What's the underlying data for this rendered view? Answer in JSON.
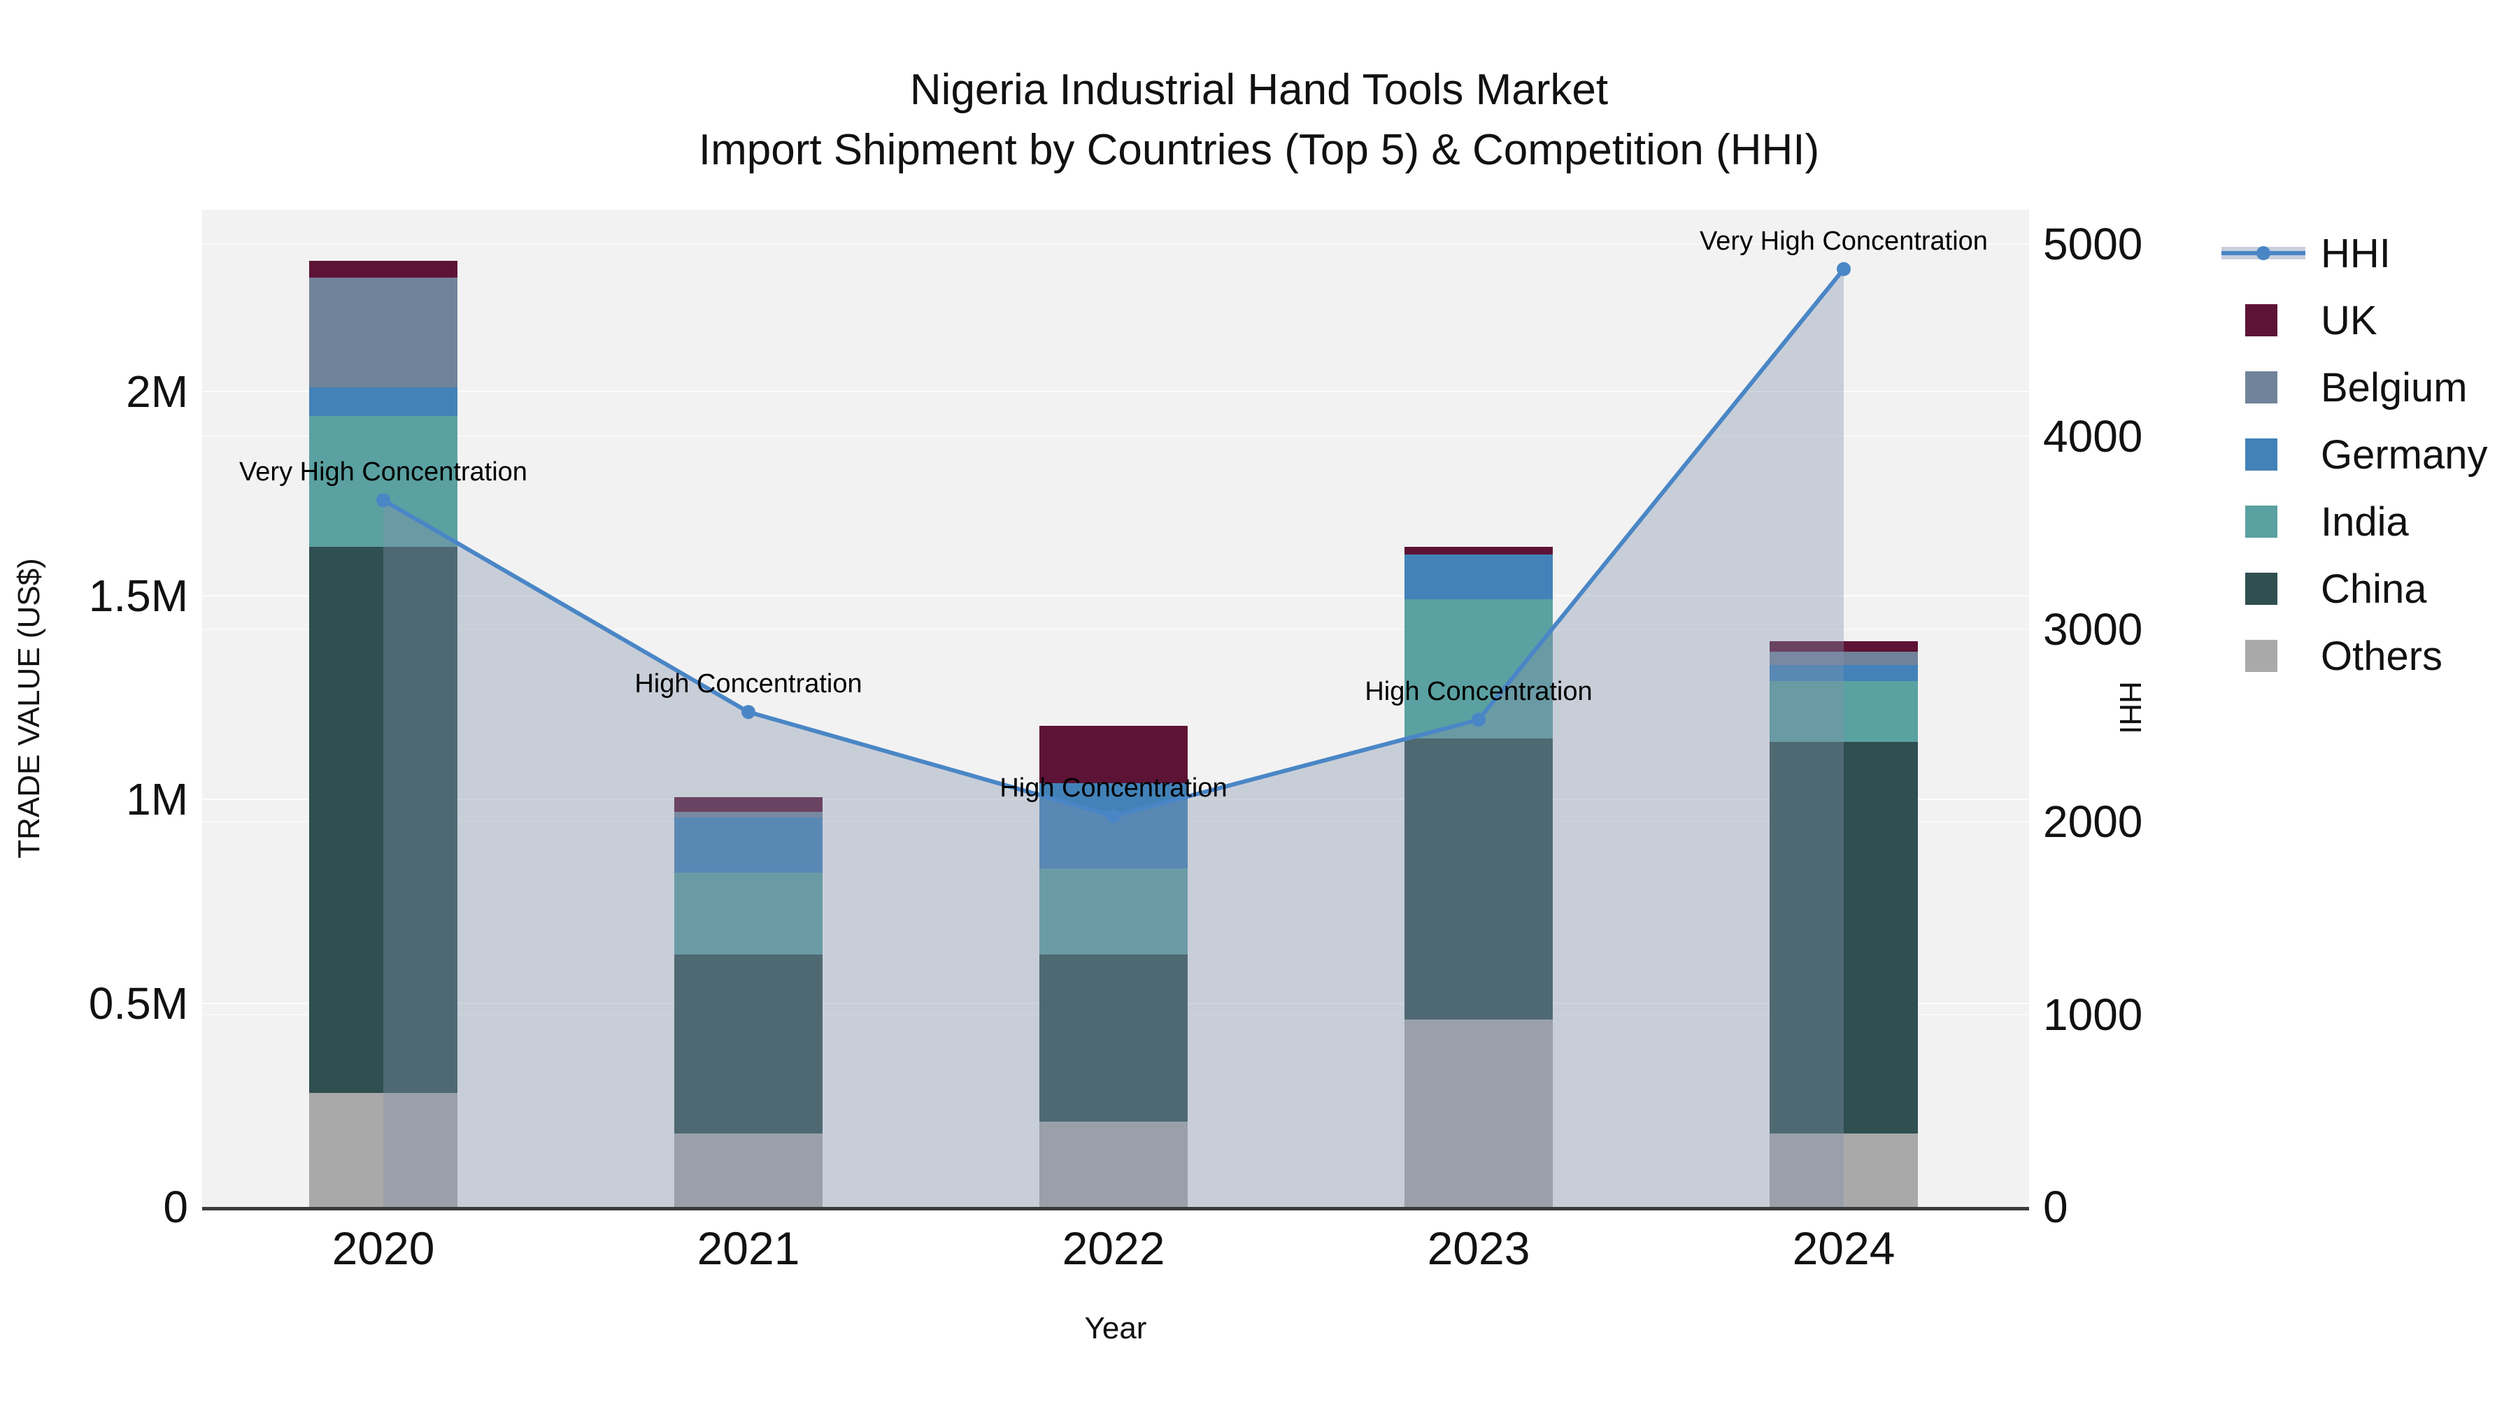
{
  "title": {
    "line1": "Nigeria Industrial Hand Tools Market",
    "line2": "Import Shipment by Countries (Top 5) & Competition (HHI)"
  },
  "axis_left": {
    "label": "TRADE VALUE (US$)",
    "ticks": [
      {
        "label": "0",
        "value": 0
      },
      {
        "label": "0.5M",
        "value": 0.5
      },
      {
        "label": "1M",
        "value": 1
      },
      {
        "label": "1.5M",
        "value": 1.5
      },
      {
        "label": "2M",
        "value": 2
      }
    ]
  },
  "axis_right": {
    "label": "HHI",
    "ticks": [
      {
        "label": "0",
        "value": 0
      },
      {
        "label": "1000",
        "value": 1000
      },
      {
        "label": "2000",
        "value": 2000
      },
      {
        "label": "3000",
        "value": 3000
      },
      {
        "label": "4000",
        "value": 4000
      },
      {
        "label": "5000",
        "value": 5000
      }
    ]
  },
  "axis_x": {
    "label": "Year"
  },
  "legend": {
    "items": [
      {
        "label": "HHI",
        "type": "line"
      },
      {
        "label": "UK",
        "type": "swatch",
        "color": "#5d1335"
      },
      {
        "label": "Belgium",
        "type": "swatch",
        "color": "#71839a"
      },
      {
        "label": "Germany",
        "type": "swatch",
        "color": "#4282b8"
      },
      {
        "label": "India",
        "type": "swatch",
        "color": "#5ba1a1"
      },
      {
        "label": "China",
        "type": "swatch",
        "color": "#2f4f50"
      },
      {
        "label": "Others",
        "type": "swatch",
        "color": "#a9a9a9"
      }
    ]
  },
  "chart_data": {
    "type": "bar",
    "subtype": "stacked-bars-with-line-area-overlay",
    "title": "Nigeria Industrial Hand Tools Market — Import Shipment by Countries (Top 5) & Competition (HHI)",
    "categories": [
      "2020",
      "2021",
      "2022",
      "2023",
      "2024"
    ],
    "bar_unit": "Trade value, millions of US$",
    "stack_order_bottom_to_top": [
      "Others",
      "China",
      "India",
      "Germany",
      "Belgium",
      "UK"
    ],
    "series": [
      {
        "name": "Others",
        "color": "#a9a9a9",
        "values": [
          0.28,
          0.18,
          0.21,
          0.46,
          0.18
        ]
      },
      {
        "name": "China",
        "color": "#2f4f50",
        "values": [
          1.34,
          0.44,
          0.41,
          0.69,
          0.96
        ]
      },
      {
        "name": "India",
        "color": "#5ba1a1",
        "values": [
          0.32,
          0.2,
          0.21,
          0.34,
          0.15
        ]
      },
      {
        "name": "Germany",
        "color": "#4282b8",
        "values": [
          0.07,
          0.135,
          0.21,
          0.11,
          0.04
        ]
      },
      {
        "name": "Belgium",
        "color": "#71839a",
        "values": [
          0.27,
          0.015,
          0,
          0,
          0.032
        ]
      },
      {
        "name": "UK",
        "color": "#5d1335",
        "values": [
          0.04,
          0.035,
          0.14,
          0.02,
          0.025
        ]
      }
    ],
    "bar_totals_musd": [
      2.32,
      1.01,
      1.18,
      1.62,
      1.39
    ],
    "line": {
      "name": "HHI",
      "color": "#4a86c6",
      "axis": "right",
      "values": [
        3670,
        2570,
        2030,
        2530,
        4870
      ]
    },
    "annotations": [
      {
        "year": "2020",
        "text": "Very High Concentration"
      },
      {
        "year": "2021",
        "text": "High Concentration"
      },
      {
        "year": "2022",
        "text": "High Concentration"
      },
      {
        "year": "2023",
        "text": "High Concentration"
      },
      {
        "year": "2024",
        "text": "Very High Concentration"
      }
    ],
    "xlabel": "Year",
    "ylabel_left": "TRADE VALUE (US$)",
    "ylabel_right": "HHI",
    "ylim_left_musd": [
      0,
      2.44
    ],
    "ylim_right": [
      0,
      5170
    ],
    "grid": "horizontal white gridlines for both axes on light gray plot background",
    "legend_position": "right"
  },
  "colors": {
    "figure_bg": "#ffffff",
    "plot_bg": "#f2f2f2",
    "grid": "#ffffff",
    "spine": "#3a3a3a",
    "area_fill": "rgba(131,148,173,0.38)",
    "hhi_line": "#4a86c6",
    "legend_band": "#c9cfda",
    "text": "#111111"
  }
}
